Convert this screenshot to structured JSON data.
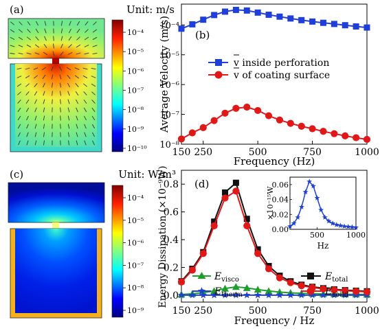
{
  "panels": {
    "a": {
      "label": "(a)",
      "unit": "Unit: m/s",
      "colorbar_ticks": [
        "10⁻⁴",
        "10⁻⁵",
        "10⁻⁶",
        "10⁻⁷",
        "10⁻⁸",
        "10⁻⁹",
        "10⁻¹⁰"
      ]
    },
    "c": {
      "label": "(c)",
      "unit": "Unit: W/m³",
      "colorbar_ticks": [
        "10⁻⁴",
        "10⁻⁵",
        "10⁻⁶",
        "10⁻⁷",
        "10⁻⁸",
        "10⁻⁹"
      ]
    }
  },
  "chart_data": [
    {
      "id": "b",
      "label": "(b)",
      "type": "line",
      "ylabel": "Average Velocity (m/s)",
      "xlabel": "Frequency (Hz)",
      "xlim": [
        150,
        1000
      ],
      "ylim": [
        1e-08,
        0.0005
      ],
      "yscale": "log",
      "xticks": [
        150,
        250,
        500,
        750,
        1000
      ],
      "yticks": [
        "10⁻⁴",
        "10⁻⁵",
        "10⁻⁶",
        "10⁻⁷",
        "10⁻⁸"
      ],
      "legend": "center",
      "x": [
        150,
        200,
        250,
        300,
        350,
        400,
        450,
        500,
        550,
        600,
        650,
        700,
        750,
        800,
        850,
        900,
        950,
        1000
      ],
      "series": [
        {
          "name": "v inside perforation",
          "color": "#1f3fd8",
          "marker": "square",
          "values": [
            7.5e-05,
            0.000105,
            0.00015,
            0.000215,
            0.00028,
            0.00032,
            0.000305,
            0.00026,
            0.00022,
            0.00019,
            0.000165,
            0.000145,
            0.00013,
            0.000118,
            0.000108,
            9.8e-05,
            8.9e-05,
            8.2e-05
          ]
        },
        {
          "name": "v of coating surface",
          "color": "#e01818",
          "marker": "circle",
          "values": [
            1.5e-08,
            2.4e-08,
            3.6e-08,
            6.2e-08,
            1.1e-07,
            1.6e-07,
            1.75e-07,
            1.35e-07,
            9e-08,
            6.5e-08,
            5e-08,
            4e-08,
            3.3e-08,
            2.7e-08,
            2.25e-08,
            1.9e-08,
            1.65e-08,
            1.45e-08
          ]
        }
      ]
    },
    {
      "id": "d",
      "label": "(d)",
      "type": "line",
      "ylabel": "Energy Dissipation (×10⁻⁹W)",
      "xlabel": "Frequency / Hz",
      "xlim": [
        150,
        1000
      ],
      "ylim": [
        -0.05,
        0.9
      ],
      "xticks": [
        150,
        250,
        500,
        750,
        1000
      ],
      "yticks": [
        "0.0",
        "0.2",
        "0.4",
        "0.6",
        "0.8"
      ],
      "x": [
        150,
        200,
        250,
        300,
        350,
        400,
        450,
        500,
        550,
        600,
        650,
        700,
        750,
        800,
        850,
        900,
        950,
        1000
      ],
      "series": [
        {
          "name": "E_visco",
          "label_main": "E",
          "label_sub": "visco",
          "color": "#1e9e2a",
          "marker": "triangle",
          "values": [
            0.005,
            0.01,
            0.018,
            0.03,
            0.048,
            0.06,
            0.052,
            0.04,
            0.03,
            0.022,
            0.017,
            0.013,
            0.011,
            0.009,
            0.008,
            0.007,
            0.006,
            0.005
          ]
        },
        {
          "name": "E_therm",
          "label_main": "E",
          "label_sub": "therm",
          "color": "#2040d0",
          "marker": "star",
          "values": [
            0,
            0,
            0,
            0,
            0,
            0,
            0,
            0,
            0,
            0,
            0,
            0,
            0,
            0,
            0,
            0,
            0,
            0
          ]
        },
        {
          "name": "E_total",
          "label_main": "E",
          "label_sub": "total",
          "color": "#111111",
          "marker": "square",
          "values": [
            0.1,
            0.19,
            0.31,
            0.53,
            0.74,
            0.81,
            0.55,
            0.33,
            0.21,
            0.14,
            0.1,
            0.075,
            0.06,
            0.05,
            0.042,
            0.036,
            0.032,
            0.028
          ]
        },
        {
          "name": "E_solid",
          "label_main": "E",
          "label_sub": "solid",
          "color": "#e01818",
          "marker": "circle",
          "values": [
            0.095,
            0.18,
            0.3,
            0.5,
            0.7,
            0.75,
            0.5,
            0.3,
            0.19,
            0.125,
            0.09,
            0.068,
            0.055,
            0.045,
            0.038,
            0.032,
            0.028,
            0.024
          ]
        }
      ],
      "inset": {
        "type": "line",
        "xlabel": "Hz",
        "ylabel": "×10⁻¹⁵W",
        "xlim": [
          150,
          1000
        ],
        "ylim": [
          0,
          0.07
        ],
        "xticks": [
          500,
          1000
        ],
        "yticks": [
          "0.00",
          "0.02",
          "0.04",
          "0.06"
        ],
        "x": [
          150,
          200,
          250,
          300,
          350,
          400,
          450,
          500,
          550,
          600,
          650,
          700,
          750,
          800,
          850,
          900,
          950,
          1000
        ],
        "values": [
          0.004,
          0.008,
          0.016,
          0.03,
          0.05,
          0.064,
          0.058,
          0.042,
          0.026,
          0.016,
          0.011,
          0.008,
          0.006,
          0.005,
          0.004,
          0.0035,
          0.003,
          0.0025
        ],
        "color": "#2040d0",
        "marker": "star"
      }
    }
  ]
}
